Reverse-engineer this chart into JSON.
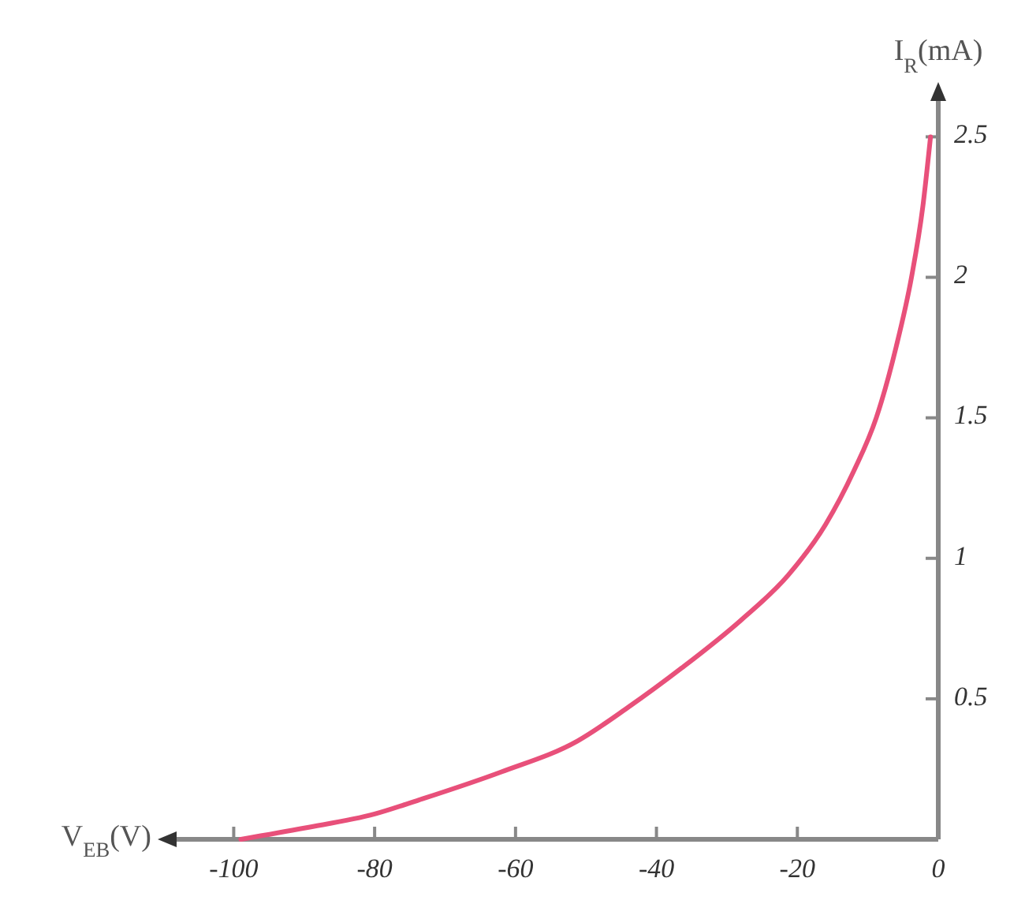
{
  "chart_data": {
    "type": "line",
    "xlabel": "V$_{EB}$(V)",
    "ylabel": "I$_{R}$(mA)",
    "x": [
      -99,
      -90,
      -80,
      -73.7,
      -62,
      -51.2,
      -44,
      -36.4,
      -28,
      -21.3,
      -16,
      -12,
      -8.8,
      -6,
      -3.8,
      -2.2,
      -1.1
    ],
    "series": [
      {
        "color": "#e8507a",
        "values": [
          0,
          0.04,
          0.09,
          0.14,
          0.24,
          0.35,
          0.47,
          0.61,
          0.78,
          0.94,
          1.12,
          1.31,
          1.5,
          1.75,
          2.0,
          2.25,
          2.5
        ]
      }
    ],
    "xlim": [
      -109,
      0
    ],
    "ylim": [
      0,
      2.65
    ],
    "xticks": [
      -100,
      -80,
      -60,
      -40,
      -20,
      0
    ],
    "yticks": [
      {
        "value": 0,
        "label": null
      },
      0.5,
      1,
      1.5,
      2,
      2.5
    ],
    "grid": false,
    "marker": "none",
    "line_style": "solid"
  }
}
